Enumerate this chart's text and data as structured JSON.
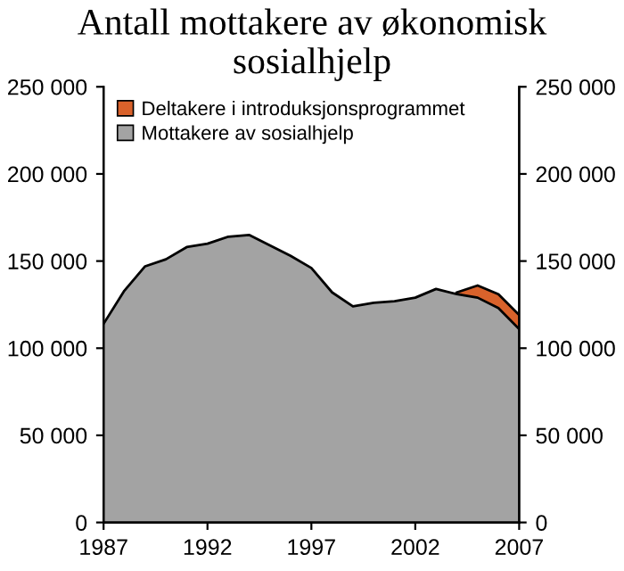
{
  "chart_data": {
    "type": "area",
    "stacked": true,
    "title": "Antall mottakere av økonomisk sosialhjelp",
    "x": [
      1987,
      1988,
      1989,
      1990,
      1991,
      1992,
      1993,
      1994,
      1995,
      1996,
      1997,
      1998,
      1999,
      2000,
      2001,
      2002,
      2003,
      2004,
      2005,
      2006,
      2007
    ],
    "series": [
      {
        "name": "Mottakere av sosialhjelp",
        "color": "#a3a3a3",
        "values": [
          114000,
          133000,
          147000,
          151000,
          158000,
          160000,
          164000,
          165000,
          159000,
          153000,
          146000,
          132000,
          124000,
          126000,
          127000,
          129000,
          134000,
          131000,
          129000,
          123000,
          111000
        ]
      },
      {
        "name": "Deltakere i introduksjonsprogrammet",
        "color": "#d9622b",
        "values": [
          null,
          null,
          null,
          null,
          null,
          null,
          null,
          null,
          null,
          null,
          null,
          null,
          null,
          null,
          null,
          null,
          null,
          1000,
          7000,
          8000,
          8000
        ]
      }
    ],
    "xlim": [
      1987,
      2007
    ],
    "xticks": [
      1987,
      1992,
      1997,
      2002,
      2007
    ],
    "ylim": [
      0,
      250000
    ],
    "yticks": [
      {
        "value": 0,
        "label": "0"
      },
      {
        "value": 50000,
        "label": "50 000"
      },
      {
        "value": 100000,
        "label": "100 000"
      },
      {
        "value": 150000,
        "label": "150 000"
      },
      {
        "value": 200000,
        "label": "200 000"
      },
      {
        "value": 250000,
        "label": "250 000"
      }
    ],
    "y2lim": [
      0,
      250000
    ],
    "y2ticks": [
      {
        "value": 0,
        "label": "0"
      },
      {
        "value": 50000,
        "label": "50 000"
      },
      {
        "value": 100000,
        "label": "100 000"
      },
      {
        "value": 150000,
        "label": "150 000"
      },
      {
        "value": 200000,
        "label": "200 000"
      },
      {
        "value": 250000,
        "label": "250 000"
      }
    ],
    "grid": false,
    "legend": "top left"
  }
}
